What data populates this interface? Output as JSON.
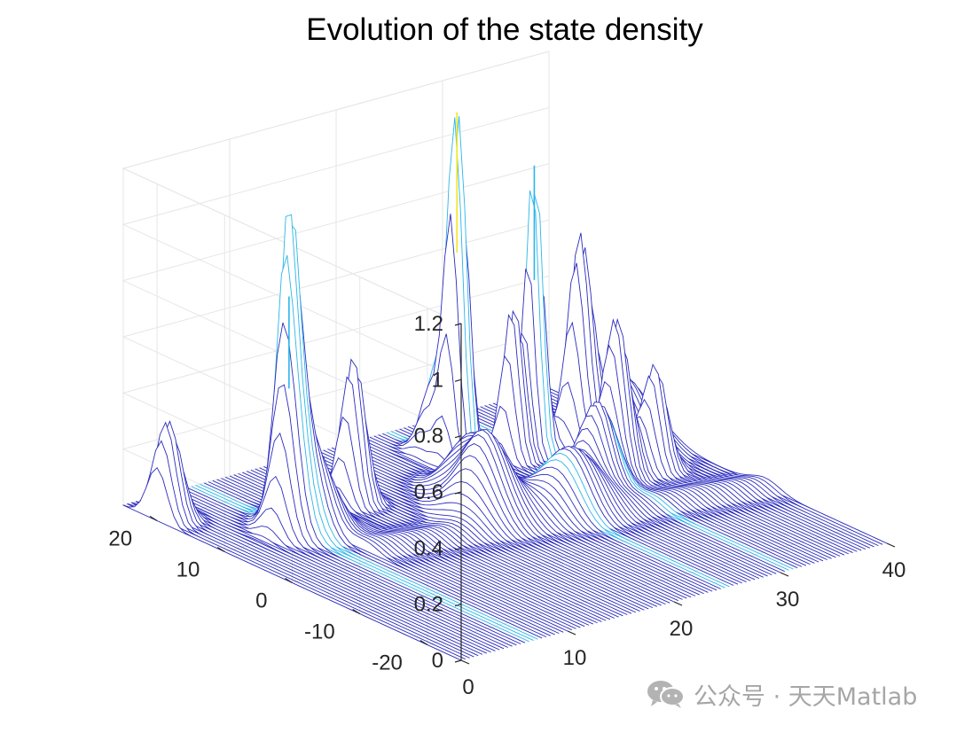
{
  "figure": {
    "title": "Evolution of the state density"
  },
  "watermark": {
    "icon": "wechat-icon",
    "text": "公众号 · 天天Matlab"
  },
  "colors": {
    "axis": "#262626",
    "grid": "#e6e6e6",
    "mesh_edge": "#2b2bbf",
    "mesh_edge_low": "#3b34c6",
    "mesh_fill": "#ffffff",
    "peak_high": "#f0e626",
    "peak_mid": "#2bb5e8"
  },
  "chart_data": {
    "type": "surface",
    "title": "Evolution of the state density",
    "xlabel": "",
    "ylabel": "",
    "zlabel": "",
    "x_axis": {
      "label": "",
      "ticks": [
        0,
        10,
        20,
        30,
        40
      ],
      "range": [
        0,
        40
      ]
    },
    "y_axis": {
      "label": "",
      "ticks": [
        -20,
        -10,
        0,
        10,
        20
      ],
      "range": [
        -25,
        25
      ]
    },
    "z_axis": {
      "label": "",
      "ticks": [
        "0",
        "0.2",
        "0.4",
        "0.6",
        "0.8",
        "1",
        "1.2"
      ],
      "tick_values": [
        0,
        0.2,
        0.4,
        0.6,
        0.8,
        1.0,
        1.2
      ],
      "range": [
        0,
        1.2
      ]
    },
    "grid": true,
    "peaks": [
      {
        "t": 1,
        "y": 20,
        "height": 0.35,
        "width": 0.9
      },
      {
        "t": 7,
        "y": 11.5,
        "height": 0.82,
        "width": 0.7
      },
      {
        "t": 6,
        "y": 10,
        "height": 0.45,
        "width": 0.9
      },
      {
        "t": 8,
        "y": 10,
        "height": 0.3,
        "width": 1.5
      },
      {
        "t": 14,
        "y": 13,
        "height": 0.52,
        "width": 0.8
      },
      {
        "t": 20,
        "y": 3,
        "height": 0.28,
        "width": 1.6
      },
      {
        "t": 25,
        "y": 15,
        "height": 1.25,
        "width": 0.7
      },
      {
        "t": 25,
        "y": 18,
        "height": 0.3,
        "width": 0.9
      },
      {
        "t": 31,
        "y": 13,
        "height": 1.02,
        "width": 0.6
      },
      {
        "t": 29,
        "y": 13,
        "height": 0.55,
        "width": 0.7
      },
      {
        "t": 34,
        "y": 11,
        "height": 0.7,
        "width": 0.8
      },
      {
        "t": 33,
        "y": 4,
        "height": 0.55,
        "width": 0.9
      },
      {
        "t": 36,
        "y": 3,
        "height": 0.35,
        "width": 0.8
      },
      {
        "t": 30,
        "y": 2,
        "height": 0.3,
        "width": 1.2
      },
      {
        "t": 37,
        "y": 10,
        "height": 0.25,
        "width": 2.0
      },
      {
        "t": 26,
        "y": 0,
        "height": 0.2,
        "width": 1.8
      },
      {
        "t": 22,
        "y": 8,
        "height": 0.2,
        "width": 1.6
      }
    ]
  }
}
